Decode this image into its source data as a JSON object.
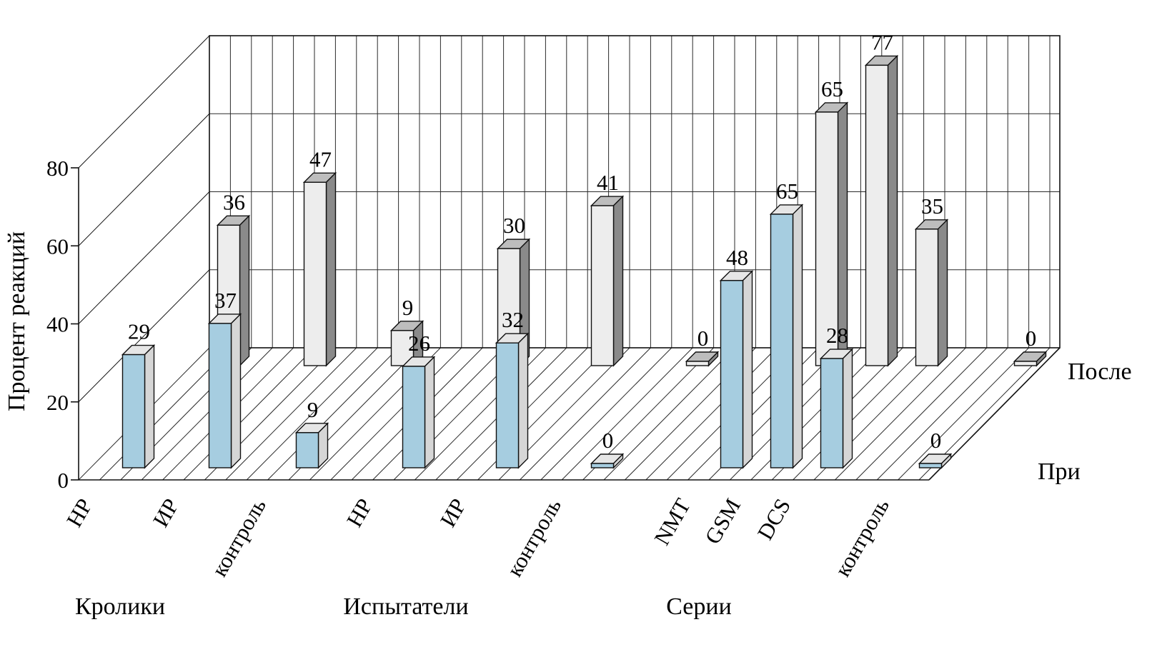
{
  "chart_data": {
    "type": "bar",
    "projection": "3d",
    "title": "",
    "ylabel": "Процент реакций",
    "ylim": [
      0,
      80
    ],
    "yticks": [
      "0",
      "20",
      "40",
      "60",
      "80"
    ],
    "categories": [
      "НР",
      "ИР",
      "контроль",
      "НР",
      "ИР",
      "контроль",
      "NMT",
      "GSM",
      "DCS",
      "контроль"
    ],
    "category_groups": [
      {
        "label": "Кролики",
        "span": [
          0,
          2
        ]
      },
      {
        "label": "Испытатели",
        "span": [
          3,
          5
        ]
      },
      {
        "label": "Серии",
        "span": [
          6,
          9
        ]
      }
    ],
    "series": [
      {
        "name": "При",
        "depth_row": "front",
        "values": [
          29,
          37,
          9,
          26,
          32,
          0,
          48,
          65,
          28,
          0
        ]
      },
      {
        "name": "После",
        "depth_row": "back",
        "values": [
          36,
          47,
          9,
          30,
          41,
          0,
          65,
          77,
          35,
          0
        ]
      }
    ],
    "value_labels": true,
    "grid": true,
    "legend_position": "depth-axis-right"
  },
  "colors": {
    "background": "#ffffff",
    "text": "#000000",
    "outline": "#111111",
    "grid": "#2a2a2a",
    "series": [
      {
        "front": "#a6cde0",
        "side": "#d6d6d6",
        "top": "#e6e6e6"
      },
      {
        "front": "#ededed",
        "side": "#8a8a8a",
        "top": "#bdbdbd"
      }
    ]
  }
}
